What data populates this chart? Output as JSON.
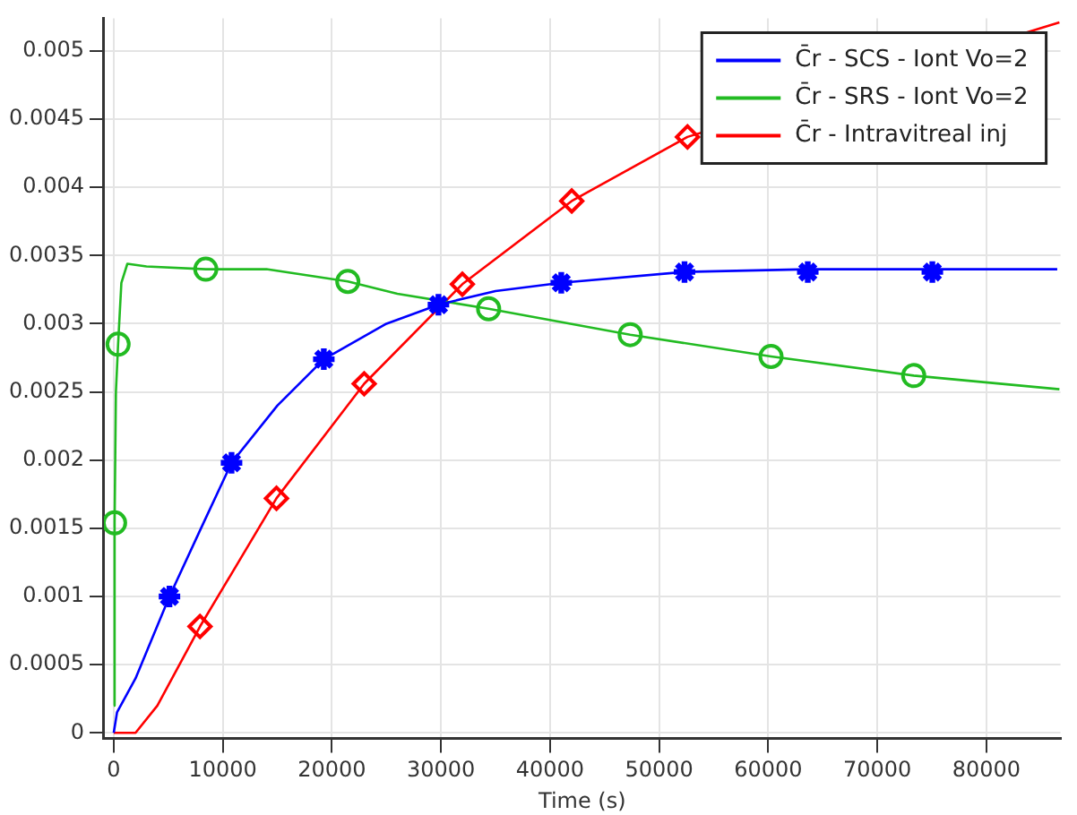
{
  "chart_data": {
    "type": "line",
    "xlabel": "Time (s)",
    "xlim": [
      -900,
      86800
    ],
    "ylim": [
      -4e-05,
      0.00524
    ],
    "xticks": [
      0,
      10000,
      20000,
      30000,
      40000,
      50000,
      60000,
      70000,
      80000
    ],
    "yticks": [
      0,
      0.0005,
      0.001,
      0.0015,
      0.002,
      0.0025,
      0.003,
      0.0035,
      0.004,
      0.0045,
      0.005
    ],
    "grid": true,
    "legend": "top right",
    "line_style": "solid",
    "series": [
      {
        "name": "C̄r - SCS - Iont Vo=2",
        "type": "line",
        "marker": "none",
        "color": "#0000ff",
        "x": [
          0,
          300,
          2000,
          5110,
          8000,
          10800,
          15000,
          19260,
          25000,
          29770,
          35000,
          41030,
          52330,
          63630,
          75050,
          86500
        ],
        "values": [
          0,
          0.00015,
          0.0004,
          0.001,
          0.0015,
          0.00198,
          0.0024,
          0.00274,
          0.003,
          0.00314,
          0.00324,
          0.0033,
          0.00338,
          0.0034,
          0.0034,
          0.0034
        ]
      },
      {
        "type": "scatter",
        "marker": "cross",
        "color": "#0000ff",
        "x": [
          5110,
          10800,
          19260,
          29770,
          41030,
          52330,
          63630,
          75050
        ],
        "values": [
          0.001,
          0.00198,
          0.00274,
          0.00314,
          0.0033,
          0.00338,
          0.00338,
          0.00338
        ]
      },
      {
        "name": "C̄r - SRS - Iont Vo=2",
        "type": "line",
        "marker": "none",
        "color": "#22bb22",
        "x": [
          0,
          80,
          200,
          400,
          700,
          1250,
          3000,
          8440,
          14000,
          21460,
          26000,
          34370,
          47350,
          60260,
          73340,
          86700
        ],
        "values": [
          0.0002,
          0.00154,
          0.0025,
          0.00285,
          0.0033,
          0.00344,
          0.00342,
          0.0034,
          0.0034,
          0.00331,
          0.00322,
          0.00311,
          0.00292,
          0.00276,
          0.00262,
          0.00252
        ]
      },
      {
        "type": "scatter",
        "marker": "circle",
        "color": "#22bb22",
        "x": [
          80,
          400,
          8440,
          21460,
          34370,
          47350,
          60260,
          73340
        ],
        "values": [
          0.00154,
          0.00285,
          0.0034,
          0.00331,
          0.00311,
          0.00292,
          0.00276,
          0.00262
        ]
      },
      {
        "name": "C̄r - Intravitreal inj",
        "type": "line",
        "marker": "none",
        "color": "#ff0000",
        "x": [
          0,
          2000,
          4000,
          7910,
          14920,
          22960,
          31960,
          41990,
          52600,
          60000,
          70000,
          86700
        ],
        "values": [
          0,
          0,
          0.0002,
          0.00078,
          0.00172,
          0.00256,
          0.00329,
          0.0039,
          0.00437,
          null,
          null,
          0.00521
        ]
      },
      {
        "type": "scatter",
        "marker": "diamond",
        "color": "#ff0000",
        "x": [
          7910,
          14920,
          22960,
          31960,
          41990,
          52600
        ],
        "values": [
          0.00078,
          0.00172,
          0.00256,
          0.00329,
          0.0039,
          0.00437
        ]
      }
    ]
  }
}
